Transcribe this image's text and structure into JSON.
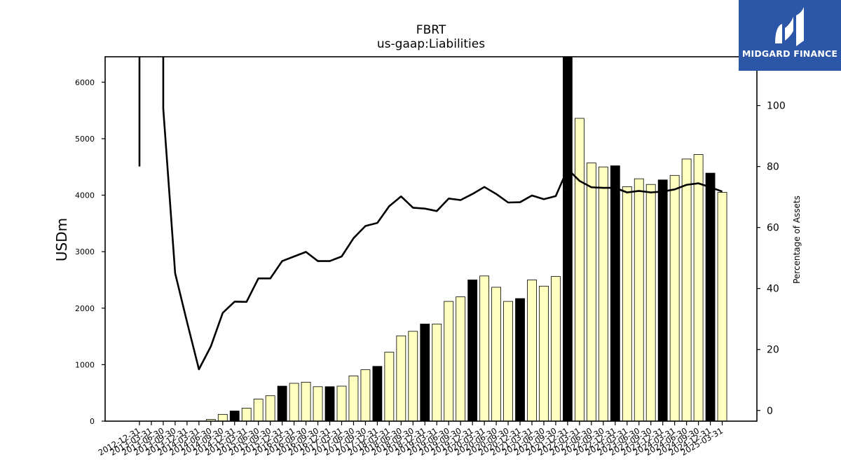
{
  "title": "FBRT",
  "subtitle": "us-gaap:Liabilities",
  "brand": {
    "name": "MIDGARD FINANCE",
    "color": "#2c57a8"
  },
  "chart_data": {
    "type": "bar",
    "x": [
      "2012-12-31",
      "2013-03-31",
      "2013-06-30",
      "2013-09-30",
      "2013-12-31",
      "2014-03-31",
      "2014-06-30",
      "2014-09-30",
      "2014-12-31",
      "2015-03-31",
      "2015-06-30",
      "2015-09-30",
      "2015-12-31",
      "2016-03-31",
      "2016-06-30",
      "2016-09-30",
      "2016-12-31",
      "2017-03-31",
      "2017-06-30",
      "2017-09-30",
      "2017-12-31",
      "2018-03-31",
      "2018-06-30",
      "2018-09-30",
      "2018-12-31",
      "2019-03-31",
      "2019-06-30",
      "2019-09-30",
      "2019-12-31",
      "2020-03-31",
      "2020-06-30",
      "2020-09-30",
      "2020-12-31",
      "2021-03-31",
      "2021-06-30",
      "2021-09-30",
      "2021-12-31",
      "2022-03-31",
      "2022-06-30",
      "2022-09-30",
      "2022-12-31",
      "2023-03-31",
      "2023-06-30",
      "2023-09-30",
      "2023-12-31",
      "2024-03-31",
      "2024-06-30",
      "2024-09-30",
      "2024-12-31",
      "2025-03-31"
    ],
    "series": [
      {
        "type": "bar",
        "values": [
          0,
          0,
          0,
          0,
          0,
          0,
          30,
          120,
          180,
          230,
          390,
          450,
          620,
          670,
          690,
          610,
          610,
          620,
          800,
          910,
          970,
          1220,
          1510,
          1590,
          1720,
          1720,
          2120,
          2200,
          2500,
          2570,
          2370,
          2120,
          2170,
          2500,
          2390,
          2560,
          6450,
          5360,
          4570,
          4500,
          4520,
          4150,
          4290,
          4190,
          4270,
          4350,
          4640,
          4720,
          4390,
          4050
        ],
        "highlight": [
          false,
          false,
          false,
          false,
          true,
          false,
          false,
          false,
          true,
          false,
          false,
          false,
          true,
          false,
          false,
          false,
          true,
          false,
          false,
          false,
          true,
          false,
          false,
          false,
          true,
          false,
          false,
          false,
          true,
          false,
          false,
          false,
          true,
          false,
          false,
          false,
          true,
          false,
          false,
          false,
          true,
          false,
          false,
          false,
          true,
          false,
          false,
          false,
          true,
          false
        ]
      },
      {
        "type": "line",
        "axis": "right",
        "values": [
          80,
          null,
          99,
          45,
          29,
          13.5,
          21,
          32,
          35.7,
          35.6,
          43.3,
          43.3,
          49,
          50.5,
          52,
          49,
          49,
          50.5,
          56.5,
          60.5,
          61.5,
          67,
          70.2,
          66.5,
          66.2,
          65.4,
          69.5,
          69,
          71,
          73.3,
          71,
          68.2,
          68.3,
          70.5,
          69.3,
          70.3,
          79.2,
          75.3,
          73.2,
          73,
          73,
          71.5,
          72,
          71.5,
          71.8,
          72.5,
          74,
          74.5,
          73.2,
          71.8
        ]
      }
    ],
    "colors": {
      "bar": "#ffffc0",
      "bar_highlight": "#000000",
      "line": "#000000"
    },
    "ylabel": "USDm",
    "y2label": "Percentage of Assets",
    "ylim": [
      0,
      6450
    ],
    "y2lim": [
      -3.5,
      116
    ],
    "yticks": [
      0,
      1000,
      2000,
      3000,
      4000,
      5000,
      6000
    ],
    "y2ticks": [
      0,
      20,
      40,
      60,
      80,
      100
    ],
    "grid": false,
    "legend": "none"
  }
}
